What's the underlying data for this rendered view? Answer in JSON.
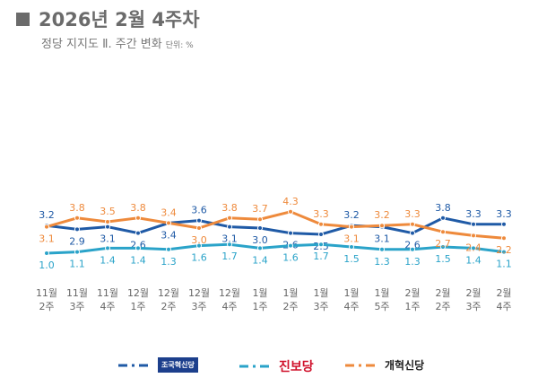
{
  "header": {
    "title": "2026년 2월 4주차",
    "subtitle": "정당 지지도 Ⅱ. 주간 변화",
    "unit": "단위: %"
  },
  "chart_data": {
    "type": "line",
    "categories": [
      "11월\n2주",
      "11월\n3주",
      "11월\n4주",
      "12월\n1주",
      "12월\n2주",
      "12월\n3주",
      "12월\n4주",
      "1월\n1주",
      "1월\n2주",
      "1월\n3주",
      "1월\n4주",
      "1월\n5주",
      "2월\n1주",
      "2월\n2주",
      "2월\n3주",
      "2월\n4주"
    ],
    "series": [
      {
        "name": "조국혁신당",
        "color": "#1f5aa6",
        "values": [
          3.2,
          2.9,
          3.1,
          2.6,
          3.4,
          3.6,
          3.1,
          3.0,
          2.6,
          2.5,
          3.2,
          3.1,
          2.6,
          3.8,
          3.3,
          3.3
        ]
      },
      {
        "name": "진보당",
        "color": "#2aa3c9",
        "values": [
          1.0,
          1.1,
          1.4,
          1.4,
          1.3,
          1.6,
          1.7,
          1.4,
          1.6,
          1.7,
          1.5,
          1.3,
          1.3,
          1.5,
          1.4,
          1.1
        ]
      },
      {
        "name": "개혁신당",
        "color": "#ee8a3c",
        "values": [
          3.1,
          3.8,
          3.5,
          3.8,
          3.4,
          3.0,
          3.8,
          3.7,
          4.3,
          3.3,
          3.1,
          3.2,
          3.3,
          2.7,
          2.4,
          2.2
        ]
      }
    ],
    "legend_placement": "bottom",
    "grid": false,
    "ylabel": "단위: %"
  }
}
